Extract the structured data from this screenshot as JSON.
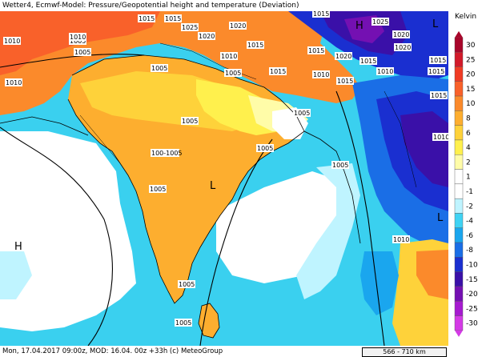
{
  "header": {
    "title": "Wetter4, Ecmwf-Model: Pressure/Geopotential height and temperature (Deviation)"
  },
  "footer": {
    "run_info": "Mon, 17.04.2017 09:00z, MOD: 16.04. 00z +33h (c) MeteoGroup",
    "scale": "566 - 710 km"
  },
  "legend": {
    "unit": "Kelvin",
    "levels": [
      {
        "label": "30",
        "color": "#a8052a"
      },
      {
        "label": "25",
        "color": "#d21a2a"
      },
      {
        "label": "20",
        "color": "#f03b24"
      },
      {
        "label": "15",
        "color": "#f9612a"
      },
      {
        "label": "10",
        "color": "#fb8a2b"
      },
      {
        "label": "8",
        "color": "#fdae2f"
      },
      {
        "label": "6",
        "color": "#fed23a"
      },
      {
        "label": "4",
        "color": "#fff04d"
      },
      {
        "label": "2",
        "color": "#fffca8"
      },
      {
        "label": "1",
        "color": "#ffffff"
      },
      {
        "label": "-1",
        "color": "#ffffff"
      },
      {
        "label": "-2",
        "color": "#bff4ff"
      },
      {
        "label": "-4",
        "color": "#3fd3f4"
      },
      {
        "label": "-6",
        "color": "#1aa6ee"
      },
      {
        "label": "-8",
        "color": "#1a6ee6"
      },
      {
        "label": "-10",
        "color": "#1a2fd0"
      },
      {
        "label": "-15",
        "color": "#3a10a8"
      },
      {
        "label": "-20",
        "color": "#7410b2"
      },
      {
        "label": "-25",
        "color": "#a61ad0"
      },
      {
        "label": "-30",
        "color": "#d43ae6"
      }
    ]
  },
  "isobars": [
    {
      "label": "1010"
    },
    {
      "label": "1005"
    },
    {
      "label": "1015"
    },
    {
      "label": "1015"
    },
    {
      "label": "1025"
    },
    {
      "label": "1020"
    },
    {
      "label": "1020"
    },
    {
      "label": "1015"
    },
    {
      "label": "1010"
    },
    {
      "label": "1005"
    },
    {
      "label": "1015"
    },
    {
      "label": "1015"
    },
    {
      "label": "1020"
    },
    {
      "label": "1015"
    },
    {
      "label": "1025"
    },
    {
      "label": "1020"
    },
    {
      "label": "1010"
    },
    {
      "label": "1015"
    },
    {
      "label": "1015"
    },
    {
      "label": "1010"
    },
    {
      "label": "1010"
    },
    {
      "label": "1005"
    },
    {
      "label": "1005"
    },
    {
      "label": "1005"
    },
    {
      "label": "1005"
    },
    {
      "label": "1005"
    },
    {
      "label": "100-1005"
    },
    {
      "label": "1005"
    },
    {
      "label": "1005"
    },
    {
      "label": "1005"
    },
    {
      "label": "1005"
    },
    {
      "label": "1010"
    },
    {
      "label": "1010"
    },
    {
      "label": "1015"
    },
    {
      "label": "1020"
    },
    {
      "label": "1015"
    },
    {
      "label": "1015"
    },
    {
      "label": "1010"
    }
  ],
  "pressure_centers": [
    {
      "label": "L"
    },
    {
      "label": "L"
    },
    {
      "label": "L"
    },
    {
      "label": "H"
    },
    {
      "label": "H"
    }
  ]
}
